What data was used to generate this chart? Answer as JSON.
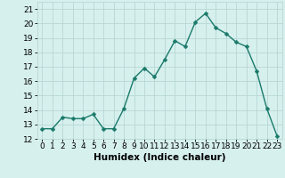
{
  "x": [
    0,
    1,
    2,
    3,
    4,
    5,
    6,
    7,
    8,
    9,
    10,
    11,
    12,
    13,
    14,
    15,
    16,
    17,
    18,
    19,
    20,
    21,
    22,
    23
  ],
  "y": [
    12.7,
    12.7,
    13.5,
    13.4,
    13.4,
    13.7,
    12.7,
    12.7,
    14.1,
    16.2,
    16.9,
    16.3,
    17.5,
    18.8,
    18.4,
    20.1,
    20.7,
    19.7,
    19.3,
    18.7,
    18.4,
    16.7,
    14.1,
    12.2
  ],
  "line_color": "#1a7a6a",
  "marker": "D",
  "marker_size": 2.5,
  "bg_color": "#d6f0ee",
  "grid_color": "#b8d8d4",
  "xlabel": "Humidex (Indice chaleur)",
  "ylabel": "",
  "ylim": [
    12,
    21.5
  ],
  "xlim": [
    -0.5,
    23.5
  ],
  "yticks": [
    12,
    13,
    14,
    15,
    16,
    17,
    18,
    19,
    20,
    21
  ],
  "xticks": [
    0,
    1,
    2,
    3,
    4,
    5,
    6,
    7,
    8,
    9,
    10,
    11,
    12,
    13,
    14,
    15,
    16,
    17,
    18,
    19,
    20,
    21,
    22,
    23
  ],
  "tick_fontsize": 6.5,
  "xlabel_fontsize": 7.5,
  "line_width": 1.0
}
